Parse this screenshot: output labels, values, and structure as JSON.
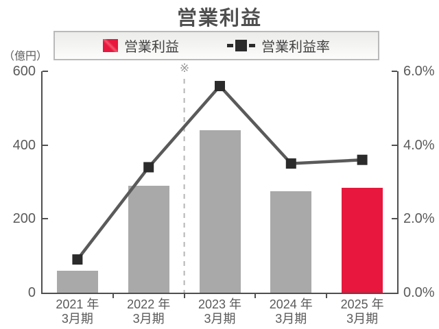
{
  "title": "営業利益",
  "legend": {
    "bar_label": "営業利益",
    "line_label": "営業利益率"
  },
  "left_axis_unit": "（億円）",
  "axis_display": {
    "left_ticks": [
      "600",
      "400",
      "200",
      "0"
    ],
    "right_ticks": [
      "6.0%",
      "4.0%",
      "2.0%",
      "0.0%"
    ]
  },
  "footnote_symbol": "※",
  "colors": {
    "bar_gray": "#a9a9a9",
    "bar_red": "#e8173d",
    "line": "#5a5a5a",
    "marker": "#2b2b2b",
    "axis": "#4f4f4f",
    "divider": "#b5b5b5",
    "text": "#5a5a5a"
  },
  "chart_data": {
    "type": "bar+line",
    "title": "営業利益",
    "categories": [
      "2021 年\n3月期",
      "2022 年\n3月期",
      "2023 年\n3月期",
      "2024 年\n3月期",
      "2025 年\n3月期"
    ],
    "series": [
      {
        "name": "営業利益",
        "type": "bar",
        "axis": "left",
        "unit": "億円",
        "values": [
          60,
          290,
          440,
          275,
          285
        ],
        "colors": [
          "#a9a9a9",
          "#a9a9a9",
          "#a9a9a9",
          "#a9a9a9",
          "#e8173d"
        ]
      },
      {
        "name": "営業利益率",
        "type": "line",
        "axis": "right",
        "unit": "%",
        "values": [
          0.9,
          3.4,
          5.6,
          3.5,
          3.6
        ]
      }
    ],
    "left_axis": {
      "label": "（億円）",
      "min": 0,
      "max": 600,
      "ticks": [
        0,
        200,
        400,
        600
      ]
    },
    "right_axis": {
      "min": 0,
      "max": 6,
      "ticks": [
        0,
        2,
        4,
        6
      ],
      "tick_format": "percent"
    },
    "annotation": {
      "symbol": "※",
      "style": "dashed-vertical-divider",
      "boundary_before_category_index": 2,
      "between": [
        "2022 年3月期",
        "2023 年3月期"
      ]
    },
    "grid": false,
    "legend_position": "top"
  }
}
